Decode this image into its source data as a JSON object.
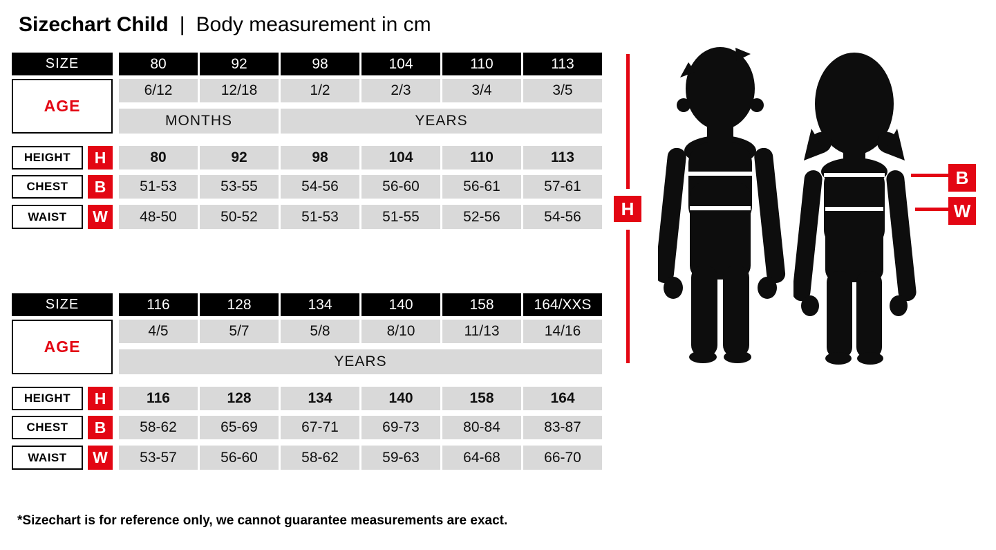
{
  "title": {
    "main": "Sizechart Child",
    "separator": "|",
    "subtitle": "Body measurement in cm"
  },
  "colors": {
    "red": "#e30613",
    "black": "#000000",
    "cell_gray": "#d9d9d9"
  },
  "labels": {
    "size": "SIZE",
    "age": "AGE",
    "height": "HEIGHT",
    "chest": "CHEST",
    "waist": "WAIST",
    "h": "H",
    "b": "B",
    "w": "W"
  },
  "tables": [
    {
      "sizes": [
        "80",
        "92",
        "98",
        "104",
        "110",
        "113"
      ],
      "ages": [
        "6/12",
        "12/18",
        "1/2",
        "2/3",
        "3/4",
        "3/5"
      ],
      "age_units": [
        {
          "label": "MONTHS",
          "span": 2
        },
        {
          "label": "YEARS",
          "span": 4
        }
      ],
      "heights": [
        "80",
        "92",
        "98",
        "104",
        "110",
        "113"
      ],
      "chest": [
        "51-53",
        "53-55",
        "54-56",
        "56-60",
        "56-61",
        "57-61"
      ],
      "waist": [
        "48-50",
        "50-52",
        "51-53",
        "51-55",
        "52-56",
        "54-56"
      ]
    },
    {
      "sizes": [
        "116",
        "128",
        "134",
        "140",
        "158",
        "164/XXS"
      ],
      "ages": [
        "4/5",
        "5/7",
        "5/8",
        "8/10",
        "11/13",
        "14/16"
      ],
      "age_units": [
        {
          "label": "YEARS",
          "span": 6
        }
      ],
      "heights": [
        "116",
        "128",
        "134",
        "140",
        "158",
        "164"
      ],
      "chest": [
        "58-62",
        "65-69",
        "67-71",
        "69-73",
        "80-84",
        "83-87"
      ],
      "waist": [
        "53-57",
        "56-60",
        "58-62",
        "59-63",
        "64-68",
        "66-70"
      ]
    }
  ],
  "footnote": "*Sizechart is for reference only, we cannot guarantee measurements are exact.",
  "chart_data": [
    {
      "type": "table",
      "title": "Sizechart Child — Body measurement in cm (sizes 80-113)",
      "columns": [
        "SIZE",
        "80",
        "92",
        "98",
        "104",
        "110",
        "113"
      ],
      "rows": [
        [
          "AGE",
          "6/12 MONTHS",
          "12/18 MONTHS",
          "1/2 YEARS",
          "2/3 YEARS",
          "3/4 YEARS",
          "3/5 YEARS"
        ],
        [
          "HEIGHT (H)",
          "80",
          "92",
          "98",
          "104",
          "110",
          "113"
        ],
        [
          "CHEST (B)",
          "51-53",
          "53-55",
          "54-56",
          "56-60",
          "56-61",
          "57-61"
        ],
        [
          "WAIST (W)",
          "48-50",
          "50-52",
          "51-53",
          "51-55",
          "52-56",
          "54-56"
        ]
      ]
    },
    {
      "type": "table",
      "title": "Sizechart Child — Body measurement in cm (sizes 116-164/XXS)",
      "columns": [
        "SIZE",
        "116",
        "128",
        "134",
        "140",
        "158",
        "164/XXS"
      ],
      "rows": [
        [
          "AGE",
          "4/5 YEARS",
          "5/7 YEARS",
          "5/8 YEARS",
          "8/10 YEARS",
          "11/13 YEARS",
          "14/16 YEARS"
        ],
        [
          "HEIGHT (H)",
          "116",
          "128",
          "134",
          "140",
          "158",
          "164"
        ],
        [
          "CHEST (B)",
          "58-62",
          "65-69",
          "67-71",
          "69-73",
          "80-84",
          "83-87"
        ],
        [
          "WAIST (W)",
          "53-57",
          "56-60",
          "58-62",
          "59-63",
          "64-68",
          "66-70"
        ]
      ]
    }
  ]
}
